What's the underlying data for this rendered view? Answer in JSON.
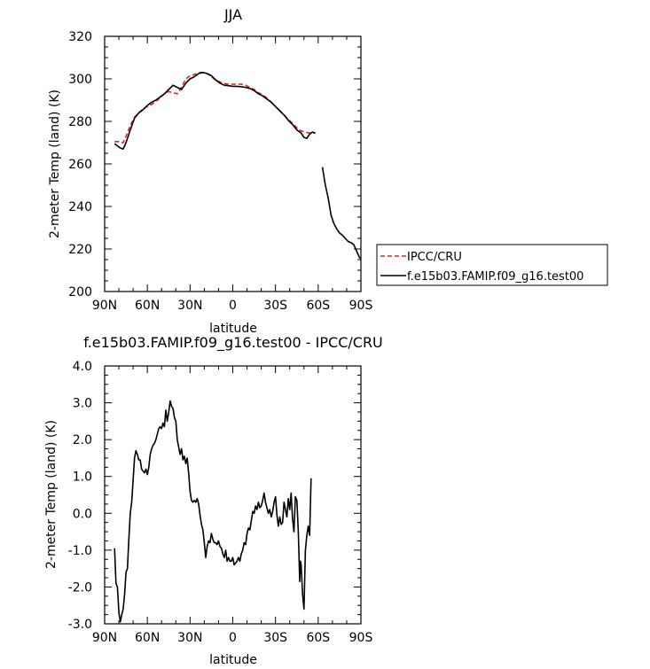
{
  "chart_data": [
    {
      "type": "line",
      "title": "JJA",
      "xlabel": "latitude",
      "ylabel": "2-meter Temp (land) (K)",
      "x_tick_labels": [
        "90N",
        "60N",
        "30N",
        "0",
        "30S",
        "60S",
        "90S"
      ],
      "y_tick_labels": [
        "200",
        "220",
        "240",
        "260",
        "280",
        "300",
        "320"
      ],
      "xlim": [
        90,
        -90
      ],
      "ylim": [
        200,
        320
      ],
      "grid": false,
      "legend_position": "right",
      "legend": [
        "IPCC/CRU",
        "f.e15b03.FAMIP.f09_g16.test00"
      ],
      "series": [
        {
          "name": "IPCC/CRU",
          "color": "#e0201b",
          "style": "dashed",
          "points": [
            [
              83,
              270.5
            ],
            [
              80,
              270.5
            ],
            [
              77,
              270
            ],
            [
              75,
              273
            ],
            [
              72,
              278
            ],
            [
              69,
              282
            ],
            [
              66,
              284
            ],
            [
              63,
              286
            ],
            [
              60,
              287
            ],
            [
              57,
              288
            ],
            [
              54,
              289.5
            ],
            [
              51,
              291
            ],
            [
              48,
              293
            ],
            [
              45,
              294
            ],
            [
              42,
              293.5
            ],
            [
              39,
              293
            ],
            [
              36,
              296
            ],
            [
              33,
              300
            ],
            [
              30,
              301.5
            ],
            [
              27,
              302
            ],
            [
              24,
              303
            ],
            [
              21,
              303
            ],
            [
              18,
              302.5
            ],
            [
              15,
              301
            ],
            [
              12,
              299.5
            ],
            [
              9,
              298.5
            ],
            [
              6,
              297.8
            ],
            [
              3,
              297.5
            ],
            [
              0,
              297.5
            ],
            [
              -3,
              297.5
            ],
            [
              -6,
              297.5
            ],
            [
              -9,
              297
            ],
            [
              -12,
              296
            ],
            [
              -15,
              295
            ],
            [
              -18,
              293.5
            ],
            [
              -21,
              292.5
            ],
            [
              -24,
              291
            ],
            [
              -27,
              289
            ],
            [
              -30,
              287
            ],
            [
              -33,
              285
            ],
            [
              -36,
              283
            ],
            [
              -39,
              281
            ],
            [
              -42,
              279
            ],
            [
              -45,
              277
            ],
            [
              -48,
              275.5
            ],
            [
              -51,
              275
            ],
            [
              -54,
              274.5
            ],
            [
              -57,
              274.5
            ],
            [
              -58,
              274.5
            ]
          ]
        },
        {
          "name": "f.e15b03.FAMIP.f09_g16.test00",
          "color": "#000000",
          "style": "solid",
          "points": [
            [
              83,
              269.5
            ],
            [
              81,
              268.5
            ],
            [
              79,
              267.5
            ],
            [
              77,
              267
            ],
            [
              75,
              270
            ],
            [
              72,
              276
            ],
            [
              69,
              281.5
            ],
            [
              66,
              284
            ],
            [
              63,
              285.5
            ],
            [
              60,
              287.5
            ],
            [
              57,
              289
            ],
            [
              54,
              290
            ],
            [
              51,
              291.5
            ],
            [
              48,
              293
            ],
            [
              45,
              295
            ],
            [
              42,
              297
            ],
            [
              39,
              296
            ],
            [
              36,
              295
            ],
            [
              33,
              298
            ],
            [
              30,
              300
            ],
            [
              27,
              301
            ],
            [
              24,
              302.5
            ],
            [
              21,
              303
            ],
            [
              18,
              302.5
            ],
            [
              15,
              301.5
            ],
            [
              12,
              299.5
            ],
            [
              9,
              298
            ],
            [
              6,
              297
            ],
            [
              3,
              296.8
            ],
            [
              0,
              296.5
            ],
            [
              -3,
              296.5
            ],
            [
              -6,
              296.3
            ],
            [
              -9,
              296
            ],
            [
              -12,
              295.5
            ],
            [
              -15,
              294.5
            ],
            [
              -18,
              293
            ],
            [
              -21,
              292
            ],
            [
              -24,
              290.5
            ],
            [
              -27,
              289
            ],
            [
              -30,
              287
            ],
            [
              -33,
              285
            ],
            [
              -36,
              283
            ],
            [
              -39,
              280.5
            ],
            [
              -42,
              278.5
            ],
            [
              -45,
              276
            ],
            [
              -48,
              274.5
            ],
            [
              -50,
              272.5
            ],
            [
              -52,
              272
            ],
            [
              -54,
              274
            ],
            [
              -56,
              275
            ],
            [
              -58,
              274.5
            ],
            null,
            [
              -63,
              258.5
            ],
            [
              -65,
              250
            ],
            [
              -67,
              244
            ],
            [
              -69,
              236
            ],
            [
              -71,
              232
            ],
            [
              -73,
              229.5
            ],
            [
              -75,
              227.5
            ],
            [
              -77,
              226.5
            ],
            [
              -79,
              225
            ],
            [
              -81,
              223.5
            ],
            [
              -83,
              223
            ],
            [
              -85,
              222
            ],
            [
              -87,
              219
            ],
            [
              -89,
              216
            ],
            [
              -90,
              215.5
            ]
          ]
        }
      ]
    },
    {
      "type": "line",
      "title": "f.e15b03.FAMIP.f09_g16.test00 - IPCC/CRU",
      "xlabel": "latitude",
      "ylabel": "2-meter Temp (land) (K)",
      "x_tick_labels": [
        "90N",
        "60N",
        "30N",
        "0",
        "30S",
        "60S",
        "90S"
      ],
      "y_tick_labels": [
        "-3.0",
        "-2.0",
        "-1.0",
        "0.0",
        "1.0",
        "2.0",
        "3.0",
        "4.0"
      ],
      "xlim": [
        90,
        -90
      ],
      "ylim": [
        -3,
        4
      ],
      "grid": false,
      "series": [
        {
          "color": "#000000",
          "style": "solid",
          "points": [
            [
              83,
              -0.95
            ],
            [
              82,
              -1.9
            ],
            [
              81,
              -2.0
            ],
            [
              80,
              -2.7
            ],
            [
              79,
              -2.95
            ],
            [
              78,
              -2.75
            ],
            [
              77,
              -2.6
            ],
            [
              76,
              -2.2
            ],
            [
              75,
              -1.6
            ],
            [
              74,
              -1.5
            ],
            [
              73,
              -0.7
            ],
            [
              72,
              0.0
            ],
            [
              71,
              0.3
            ],
            [
              70,
              0.9
            ],
            [
              69,
              1.5
            ],
            [
              68,
              1.7
            ],
            [
              67,
              1.6
            ],
            [
              66,
              1.45
            ],
            [
              65,
              1.45
            ],
            [
              64,
              1.2
            ],
            [
              63,
              1.15
            ],
            [
              62,
              1.1
            ],
            [
              61,
              1.2
            ],
            [
              60,
              1.05
            ],
            [
              59,
              1.25
            ],
            [
              58,
              1.6
            ],
            [
              57,
              1.75
            ],
            [
              56,
              1.85
            ],
            [
              55,
              1.9
            ],
            [
              54,
              2.0
            ],
            [
              53,
              2.15
            ],
            [
              52,
              2.3
            ],
            [
              51,
              2.35
            ],
            [
              50,
              2.3
            ],
            [
              49,
              2.45
            ],
            [
              48,
              2.35
            ],
            [
              47,
              2.8
            ],
            [
              46,
              2.5
            ],
            [
              45,
              2.75
            ],
            [
              44,
              3.05
            ],
            [
              43,
              2.9
            ],
            [
              42,
              2.85
            ],
            [
              41,
              2.6
            ],
            [
              40,
              2.5
            ],
            [
              39,
              2.0
            ],
            [
              38,
              1.8
            ],
            [
              37,
              1.6
            ],
            [
              36,
              1.75
            ],
            [
              35,
              1.45
            ],
            [
              34,
              1.55
            ],
            [
              33,
              1.35
            ],
            [
              32,
              1.5
            ],
            [
              31,
              1.1
            ],
            [
              30,
              0.6
            ],
            [
              29,
              0.35
            ],
            [
              28,
              0.3
            ],
            [
              27,
              0.35
            ],
            [
              26,
              0.3
            ],
            [
              25,
              0.4
            ],
            [
              24,
              0.25
            ],
            [
              23,
              -0.05
            ],
            [
              22,
              -0.3
            ],
            [
              21,
              -0.45
            ],
            [
              20,
              -0.8
            ],
            [
              19,
              -1.2
            ],
            [
              18,
              -0.9
            ],
            [
              17,
              -0.75
            ],
            [
              16,
              -0.8
            ],
            [
              15,
              -0.55
            ],
            [
              14,
              -0.7
            ],
            [
              13,
              -0.8
            ],
            [
              12,
              -0.8
            ],
            [
              11,
              -0.85
            ],
            [
              10,
              -0.75
            ],
            [
              9,
              -0.9
            ],
            [
              8,
              -0.95
            ],
            [
              7,
              -1.1
            ],
            [
              6,
              -1.2
            ],
            [
              5,
              -1.0
            ],
            [
              4,
              -1.3
            ],
            [
              3,
              -1.2
            ],
            [
              2,
              -1.3
            ],
            [
              1,
              -1.3
            ],
            [
              0,
              -1.2
            ],
            [
              -1,
              -1.4
            ],
            [
              -2,
              -1.35
            ],
            [
              -3,
              -1.3
            ],
            [
              -4,
              -1.2
            ],
            [
              -5,
              -1.3
            ],
            [
              -6,
              -1.1
            ],
            [
              -7,
              -1.0
            ],
            [
              -8,
              -0.8
            ],
            [
              -9,
              -0.85
            ],
            [
              -10,
              -0.55
            ],
            [
              -11,
              -0.4
            ],
            [
              -12,
              -0.45
            ],
            [
              -13,
              -0.2
            ],
            [
              -14,
              0.05
            ],
            [
              -15,
              0.0
            ],
            [
              -16,
              0.2
            ],
            [
              -17,
              0.1
            ],
            [
              -18,
              0.3
            ],
            [
              -19,
              0.15
            ],
            [
              -20,
              0.2
            ],
            [
              -21,
              0.35
            ],
            [
              -22,
              0.55
            ],
            [
              -23,
              0.3
            ],
            [
              -24,
              0.15
            ],
            [
              -25,
              0.0
            ],
            [
              -26,
              0.1
            ],
            [
              -27,
              -0.1
            ],
            [
              -28,
              0.05
            ],
            [
              -29,
              0.3
            ],
            [
              -30,
              0.45
            ],
            [
              -31,
              -0.05
            ],
            [
              -32,
              -0.35
            ],
            [
              -33,
              -0.1
            ],
            [
              -34,
              -0.3
            ],
            [
              -35,
              -0.25
            ],
            [
              -36,
              0.3
            ],
            [
              -37,
              0.1
            ],
            [
              -38,
              -0.1
            ],
            [
              -39,
              0.4
            ],
            [
              -40,
              0.1
            ],
            [
              -41,
              0.55
            ],
            [
              -42,
              -0.15
            ],
            [
              -43,
              -0.5
            ],
            [
              -44,
              0.45
            ],
            [
              -45,
              0.35
            ],
            [
              -46,
              -0.5
            ],
            [
              -47,
              -1.85
            ],
            [
              -47.5,
              -1.3
            ],
            [
              -48,
              -1.4
            ],
            [
              -49,
              -2.2
            ],
            [
              -50,
              -2.6
            ],
            [
              -51,
              -1.0
            ],
            [
              -52,
              -0.6
            ],
            [
              -53,
              -0.35
            ],
            [
              -54,
              -0.6
            ],
            [
              -55,
              0.95
            ]
          ]
        }
      ]
    }
  ]
}
